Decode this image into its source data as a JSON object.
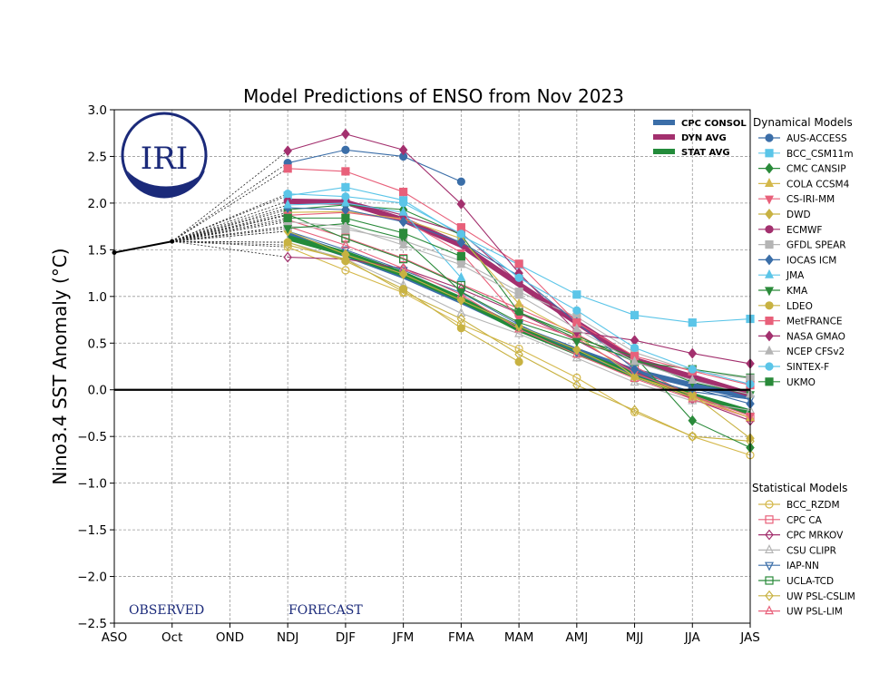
{
  "chart_data": {
    "type": "line",
    "title": "Model Predictions of ENSO from Nov 2023",
    "ylabel": "Nino3.4 SST Anomaly (°C)",
    "xlabel": "",
    "categories": [
      "ASO",
      "Oct",
      "OND",
      "NDJ",
      "DJF",
      "JFM",
      "FMA",
      "MAM",
      "AMJ",
      "MJJ",
      "JJA",
      "JAS"
    ],
    "yticks": [
      "3.0",
      "2.5",
      "2.0",
      "1.5",
      "1.0",
      "0.5",
      "0.0",
      "−0.5",
      "−1.0",
      "−1.5",
      "−2.0",
      "−2.5"
    ],
    "ylim": [
      -2.5,
      3.0
    ],
    "grid": true,
    "logo_text": "IRI",
    "observed": {
      "label": "OBSERVED",
      "x": [
        "ASO",
        "Oct"
      ],
      "values": [
        1.47,
        1.59
      ]
    },
    "forecast_label": "FORECAST",
    "averages": [
      {
        "name": "CPC CONSOL",
        "color": "#3b6ea8",
        "values": [
          1.66,
          1.45,
          1.22,
          0.95,
          0.66,
          0.42,
          0.2,
          0.05,
          -0.08
        ]
      },
      {
        "name": "DYN AVG",
        "color": "#a3306e",
        "values": [
          2.02,
          2.01,
          1.82,
          1.55,
          1.13,
          0.72,
          0.32,
          0.14,
          -0.05
        ]
      },
      {
        "name": "STAT AVG",
        "color": "#238b3a",
        "values": [
          1.63,
          1.46,
          1.24,
          0.97,
          0.65,
          0.4,
          0.16,
          -0.06,
          -0.24
        ]
      }
    ],
    "dynamical_header": "Dynamical Models",
    "statistical_header": "Statistical Models",
    "dynamical": [
      {
        "name": "AUS-ACCESS",
        "color": "#3b6ea8",
        "marker": "circle",
        "values": [
          2.43,
          2.57,
          2.5,
          2.23
        ]
      },
      {
        "name": "BCC_CSM11m",
        "color": "#5bc5e8",
        "marker": "square",
        "values": [
          2.08,
          2.17,
          2.03,
          1.65,
          1.34,
          1.02,
          0.8,
          0.72,
          0.76
        ]
      },
      {
        "name": "CMC CANSIP",
        "color": "#2a8a3a",
        "marker": "diamond",
        "values": [
          1.93,
          1.98,
          1.93,
          1.66,
          0.83,
          0.55,
          0.36,
          -0.33,
          -0.62
        ]
      },
      {
        "name": "COLA CCSM4",
        "color": "#d4b84a",
        "marker": "triangle-up",
        "values": [
          1.9,
          1.91,
          1.83,
          1.62,
          0.92,
          0.58,
          0.14,
          -0.08,
          -0.3
        ]
      },
      {
        "name": "CS-IRI-MM",
        "color": "#e8607a",
        "marker": "triangle-down",
        "values": [
          1.87,
          1.9,
          1.82,
          1.47,
          0.76,
          0.55,
          0.18,
          -0.06,
          -0.28
        ]
      },
      {
        "name": "DWD",
        "color": "#c8b242",
        "marker": "diamond",
        "values": [
          1.7,
          1.45,
          1.24,
          0.96,
          0.68,
          0.43,
          0.14,
          -0.05,
          -0.52
        ]
      },
      {
        "name": "ECMWF",
        "color": "#a3306e",
        "marker": "circle",
        "values": [
          2.02,
          2.03,
          1.87,
          1.68,
          1.15
        ]
      },
      {
        "name": "GFDL SPEAR",
        "color": "#b5b5b5",
        "marker": "square",
        "values": [
          1.75,
          1.72,
          1.6,
          1.38,
          1.05,
          0.78,
          0.4,
          0.2,
          0.12
        ]
      },
      {
        "name": "IOCAS ICM",
        "color": "#3b6ea8",
        "marker": "diamond",
        "values": [
          1.95,
          1.93,
          1.8,
          1.58,
          1.22,
          0.72,
          0.22,
          0.02,
          -0.15
        ]
      },
      {
        "name": "JMA",
        "color": "#5bc5e8",
        "marker": "triangle-up",
        "values": [
          1.98,
          2.0,
          1.9,
          1.2
        ]
      },
      {
        "name": "KMA",
        "color": "#2a8a3a",
        "marker": "triangle-down",
        "values": [
          1.73,
          1.78,
          1.62,
          1.05,
          0.72,
          0.52,
          0.33,
          0.08,
          -0.05
        ]
      },
      {
        "name": "LDEO",
        "color": "#c8b242",
        "marker": "circle",
        "values": [
          1.58,
          1.38,
          1.08,
          0.66,
          0.3
        ]
      },
      {
        "name": "MetFRANCE",
        "color": "#e8607a",
        "marker": "square",
        "values": [
          2.37,
          2.34,
          2.12,
          1.74,
          1.35,
          0.72,
          0.36,
          0.2,
          0.05
        ]
      },
      {
        "name": "NASA GMAO",
        "color": "#a3306e",
        "marker": "diamond",
        "values": [
          2.56,
          2.74,
          2.57,
          1.99,
          1.25,
          0.62,
          0.53,
          0.39,
          0.28
        ]
      },
      {
        "name": "NCEP CFSv2",
        "color": "#b5b5b5",
        "marker": "triangle-up",
        "values": [
          1.8,
          1.75,
          1.55,
          1.34,
          1.01,
          0.65,
          0.3,
          0.1,
          -0.05
        ]
      },
      {
        "name": "SINTEX-F",
        "color": "#5bc5e8",
        "marker": "circle",
        "values": [
          2.1,
          2.07,
          2.0,
          1.67,
          1.2,
          0.85,
          0.45,
          0.22,
          0.06
        ]
      },
      {
        "name": "UKMO",
        "color": "#2a8a3a",
        "marker": "square",
        "values": [
          1.84,
          1.84,
          1.68,
          1.43
        ]
      }
    ],
    "statistical": [
      {
        "name": "BCC_RZDM",
        "color": "#d4b84a",
        "marker": "circle-open",
        "values": [
          1.53,
          1.28,
          1.04,
          0.7,
          0.44,
          0.13,
          -0.24,
          -0.5,
          -0.7
        ]
      },
      {
        "name": "CPC CA",
        "color": "#e8607a",
        "marker": "square-open",
        "values": [
          1.82,
          1.63,
          1.41,
          1.13,
          0.87,
          0.6,
          0.25,
          -0.07,
          -0.3
        ]
      },
      {
        "name": "CPC MRKOV",
        "color": "#a3306e",
        "marker": "diamond-open",
        "values": [
          1.42,
          1.4,
          1.3,
          1.08,
          0.82,
          0.53,
          0.2,
          -0.1,
          -0.33
        ]
      },
      {
        "name": "CSU CLIPR",
        "color": "#b5b5b5",
        "marker": "triangle-up-open",
        "values": [
          1.58,
          1.4,
          1.12,
          0.82,
          0.6,
          0.34,
          0.08,
          -0.12,
          -0.22
        ]
      },
      {
        "name": "IAP-NN",
        "color": "#3b6ea8",
        "marker": "triangle-down-open",
        "values": [
          1.7,
          1.5,
          1.28,
          1.04,
          0.7,
          0.4,
          0.16,
          -0.02,
          -0.1
        ]
      },
      {
        "name": "UCLA-TCD",
        "color": "#2a8a3a",
        "marker": "square-open",
        "values": [
          1.88,
          1.62,
          1.4,
          1.12,
          0.83,
          0.58,
          0.3,
          0.22,
          0.13
        ]
      },
      {
        "name": "UW PSL-CSLIM",
        "color": "#c8b242",
        "marker": "diamond-open",
        "values": [
          1.55,
          1.4,
          1.05,
          0.76,
          0.38,
          0.05,
          -0.22,
          -0.5,
          -0.55
        ]
      },
      {
        "name": "UW PSL-LIM",
        "color": "#e8607a",
        "marker": "triangle-up-open",
        "values": [
          1.75,
          1.55,
          1.3,
          1.02,
          0.65,
          0.38,
          0.12,
          -0.1,
          -0.3
        ]
      }
    ]
  }
}
